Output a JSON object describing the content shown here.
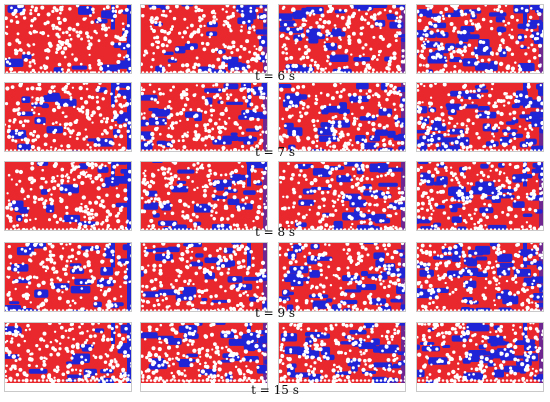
{
  "figure": {
    "rows": [
      {
        "label": "t = 6 s"
      },
      {
        "label": "t = 7 s"
      },
      {
        "label": "t = 8 s"
      },
      {
        "label": "t = 9 s"
      },
      {
        "label": "t = 15 s"
      }
    ],
    "colors": {
      "red": "#e8282c",
      "blue": "#1f25d6",
      "particle": "#ffffff",
      "frame": "#c9c9c9"
    }
  }
}
